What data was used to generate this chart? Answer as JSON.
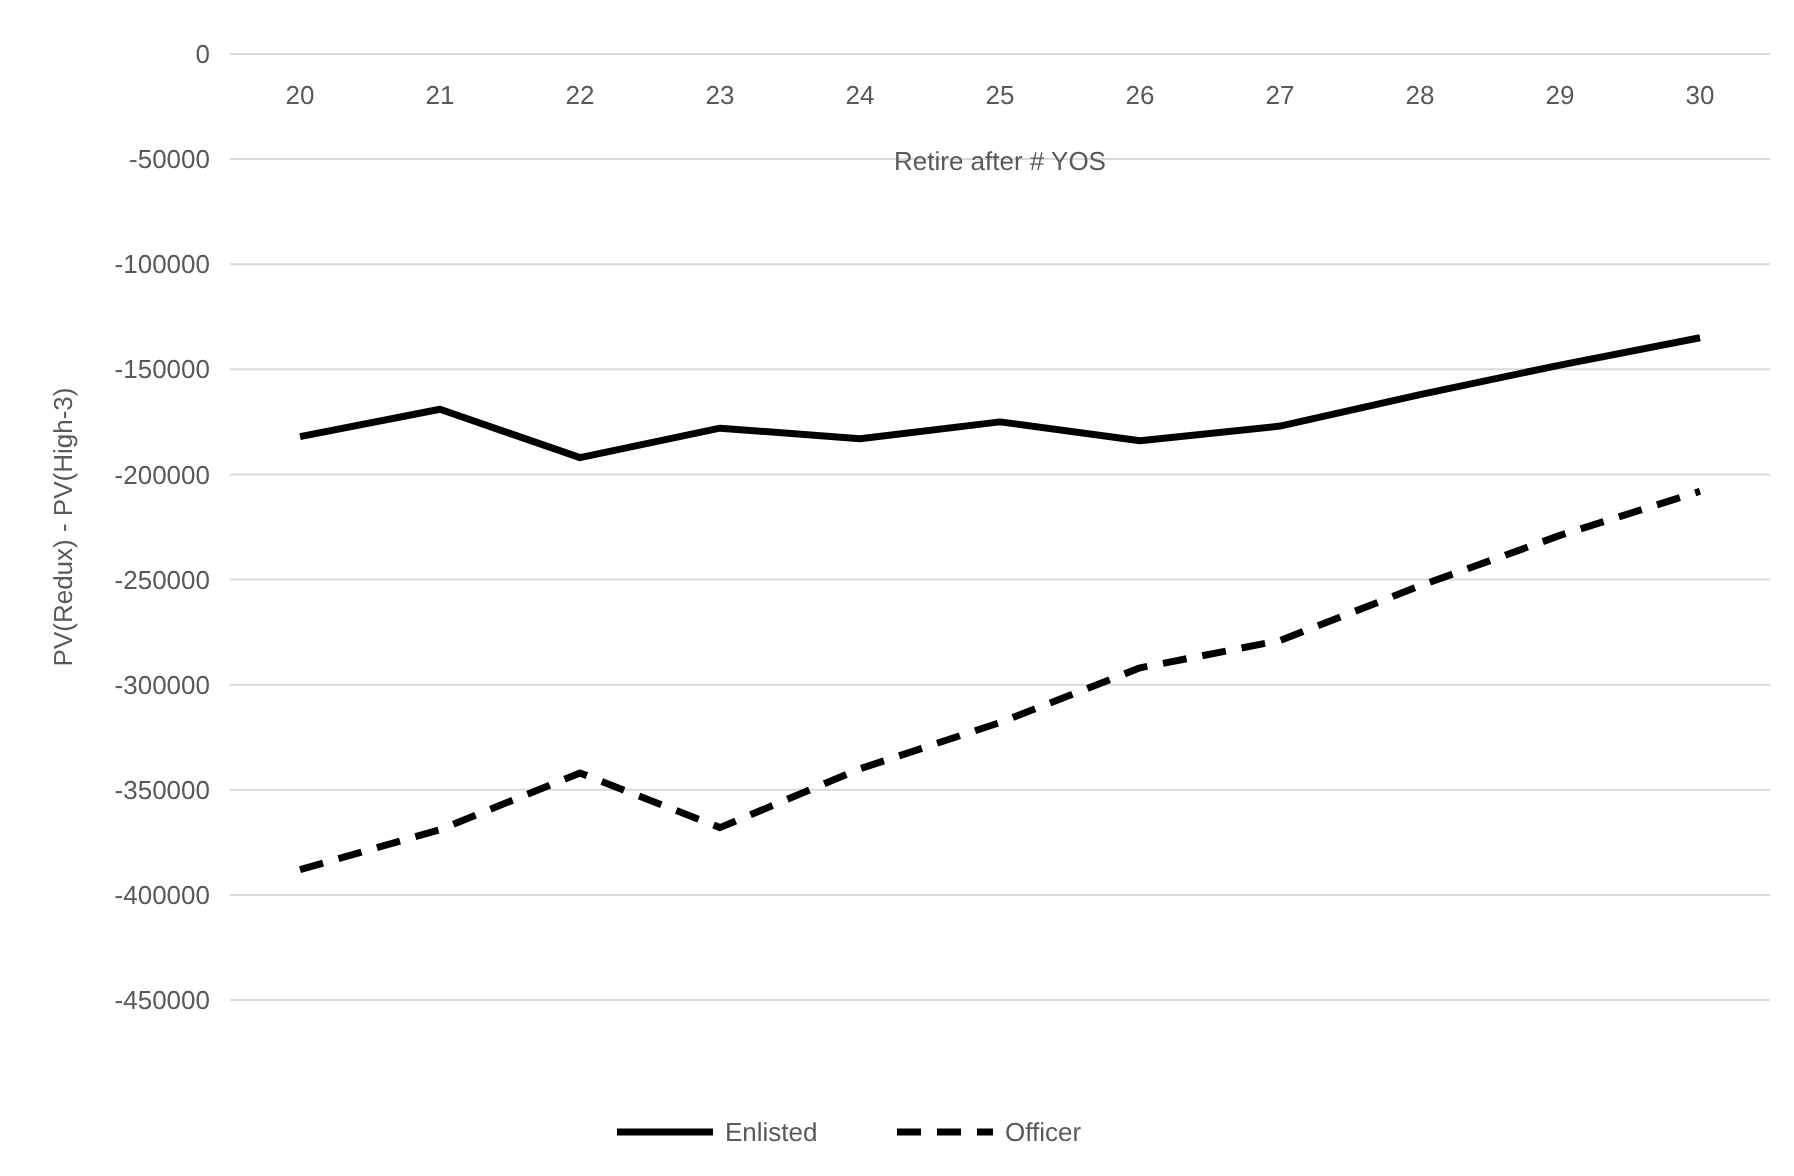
{
  "chart_data": {
    "type": "line",
    "xlabel": "Retire after # YOS",
    "ylabel": "PV(Redux) - PV(High-3)",
    "categories": [
      "20",
      "21",
      "22",
      "23",
      "24",
      "25",
      "26",
      "27",
      "28",
      "29",
      "30"
    ],
    "series": [
      {
        "name": "Enlisted",
        "color": "#000000",
        "line_style": "solid",
        "values": [
          -182000,
          -169000,
          -192000,
          -178000,
          -183000,
          -175000,
          -184000,
          -177000,
          -162000,
          -148000,
          -135000
        ]
      },
      {
        "name": "Officer",
        "color": "#000000",
        "line_style": "dashed",
        "values": [
          -388000,
          -369000,
          -342000,
          -368000,
          -340000,
          -318000,
          -292000,
          -279000,
          -253000,
          -229000,
          -208000
        ]
      }
    ],
    "ylim": [
      -450000,
      0
    ],
    "yticks": [
      0,
      -50000,
      -100000,
      -150000,
      -200000,
      -250000,
      -300000,
      -350000,
      -400000,
      -450000
    ],
    "grid": "y",
    "legend": "bottom",
    "marker": "none"
  }
}
